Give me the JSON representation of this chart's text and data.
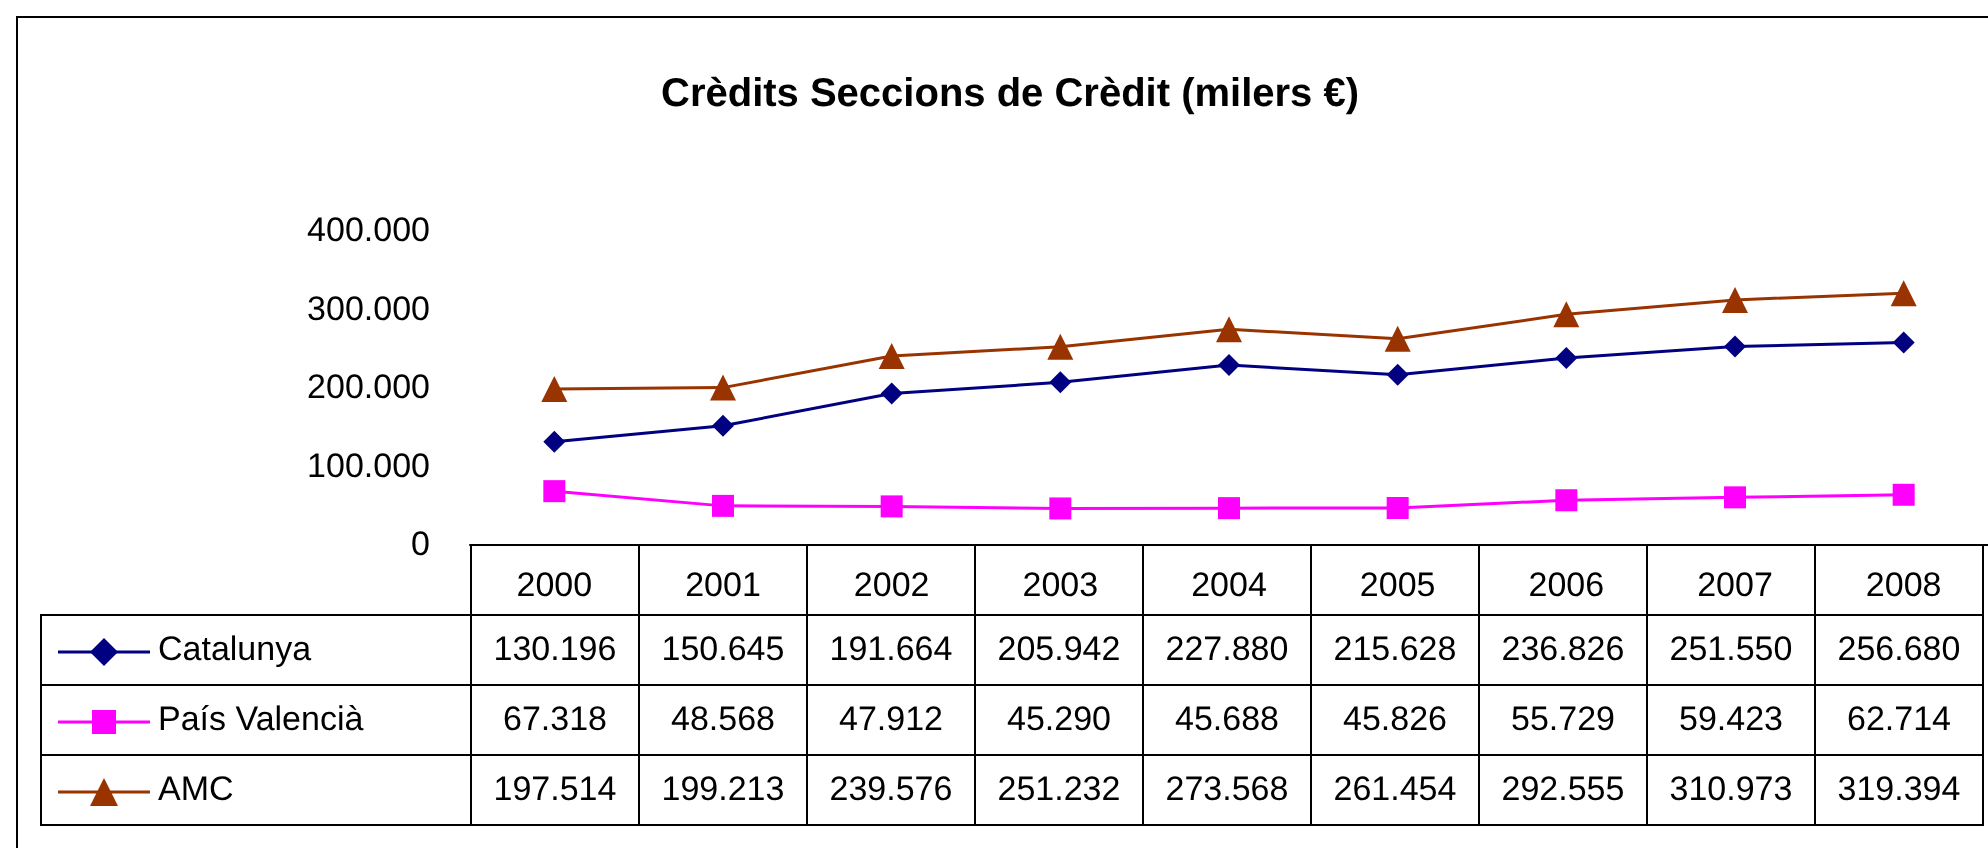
{
  "chart_data": {
    "type": "line",
    "title": "Crèdits Seccions de Crèdit (milers €)",
    "categories": [
      "2000",
      "2001",
      "2002",
      "2003",
      "2004",
      "2005",
      "2006",
      "2007",
      "2008"
    ],
    "series": [
      {
        "name": "Catalunya",
        "color": "#000080",
        "marker": "diamond",
        "values": [
          130196,
          150645,
          191664,
          205942,
          227880,
          215628,
          236826,
          251550,
          256680
        ],
        "value_labels": [
          "130.196",
          "150.645",
          "191.664",
          "205.942",
          "227.880",
          "215.628",
          "236.826",
          "251.550",
          "256.680"
        ]
      },
      {
        "name": "País Valencià",
        "color": "#ff00ff",
        "marker": "square",
        "values": [
          67318,
          48568,
          47912,
          45290,
          45688,
          45826,
          55729,
          59423,
          62714
        ],
        "value_labels": [
          "67.318",
          "48.568",
          "47.912",
          "45.290",
          "45.688",
          "45.826",
          "55.729",
          "59.423",
          "62.714"
        ]
      },
      {
        "name": "AMC",
        "color": "#993300",
        "marker": "triangle",
        "values": [
          197514,
          199213,
          239576,
          251232,
          273568,
          261454,
          292555,
          310973,
          319394
        ],
        "value_labels": [
          "197.514",
          "199.213",
          "239.576",
          "251.232",
          "273.568",
          "261.454",
          "292.555",
          "310.973",
          "319.394"
        ]
      }
    ],
    "ylim": [
      0,
      400000
    ],
    "yticks": [
      {
        "value": 0,
        "label": "0"
      },
      {
        "value": 100000,
        "label": "100.000"
      },
      {
        "value": 200000,
        "label": "200.000"
      },
      {
        "value": 300000,
        "label": "300.000"
      },
      {
        "value": 400000,
        "label": "400.000"
      }
    ],
    "grid": false,
    "legend": "bottom",
    "line_style": "solid"
  }
}
